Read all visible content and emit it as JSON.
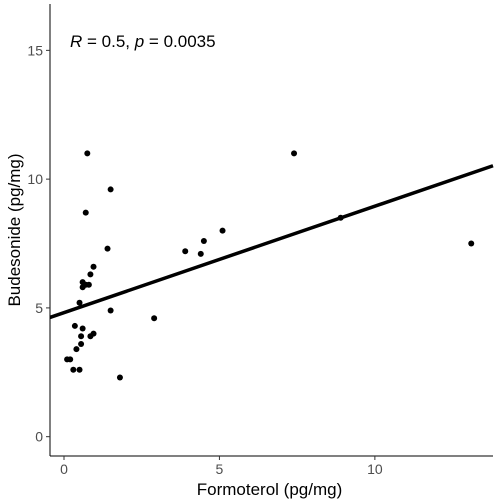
{
  "chart_data": {
    "type": "scatter",
    "title": "",
    "xlabel": "Formoterol (pg/mg)",
    "ylabel": "Budesonide (pg/mg)",
    "xlim": [
      -0.45,
      13.8
    ],
    "ylim": [
      -0.75,
      16.8
    ],
    "x_ticks": [
      0,
      5,
      10
    ],
    "y_ticks": [
      0,
      5,
      10,
      15
    ],
    "x_tick_labels": [
      "0",
      "5",
      "10"
    ],
    "y_tick_labels": [
      "0",
      "5",
      "10",
      "15"
    ],
    "grid": false,
    "annotation": {
      "r_label": "R",
      "r_value": " = 0.5, ",
      "p_label": "p",
      "p_value": " = 0.0035"
    },
    "regression": {
      "x": [
        -0.45,
        13.8
      ],
      "y": [
        4.63,
        10.52
      ]
    },
    "points": [
      {
        "x": 0.1,
        "y": 3.0
      },
      {
        "x": 0.2,
        "y": 3.0
      },
      {
        "x": 0.3,
        "y": 2.6
      },
      {
        "x": 0.5,
        "y": 2.6
      },
      {
        "x": 0.4,
        "y": 3.4
      },
      {
        "x": 0.55,
        "y": 3.6
      },
      {
        "x": 0.35,
        "y": 4.3
      },
      {
        "x": 0.55,
        "y": 3.9
      },
      {
        "x": 0.6,
        "y": 4.2
      },
      {
        "x": 0.85,
        "y": 3.9
      },
      {
        "x": 0.95,
        "y": 4.0
      },
      {
        "x": 0.5,
        "y": 5.2
      },
      {
        "x": 0.6,
        "y": 5.8
      },
      {
        "x": 0.7,
        "y": 5.9
      },
      {
        "x": 0.6,
        "y": 6.0
      },
      {
        "x": 0.8,
        "y": 5.9
      },
      {
        "x": 0.85,
        "y": 6.3
      },
      {
        "x": 0.95,
        "y": 6.6
      },
      {
        "x": 0.7,
        "y": 8.7
      },
      {
        "x": 0.75,
        "y": 11.0
      },
      {
        "x": 1.4,
        "y": 7.3
      },
      {
        "x": 1.5,
        "y": 9.6
      },
      {
        "x": 1.5,
        "y": 4.9
      },
      {
        "x": 1.8,
        "y": 2.3
      },
      {
        "x": 2.9,
        "y": 4.6
      },
      {
        "x": 3.9,
        "y": 7.2
      },
      {
        "x": 4.4,
        "y": 7.1
      },
      {
        "x": 4.5,
        "y": 7.6
      },
      {
        "x": 5.1,
        "y": 8.0
      },
      {
        "x": 7.4,
        "y": 11.0
      },
      {
        "x": 8.9,
        "y": 8.5
      },
      {
        "x": 13.1,
        "y": 7.5
      }
    ]
  }
}
